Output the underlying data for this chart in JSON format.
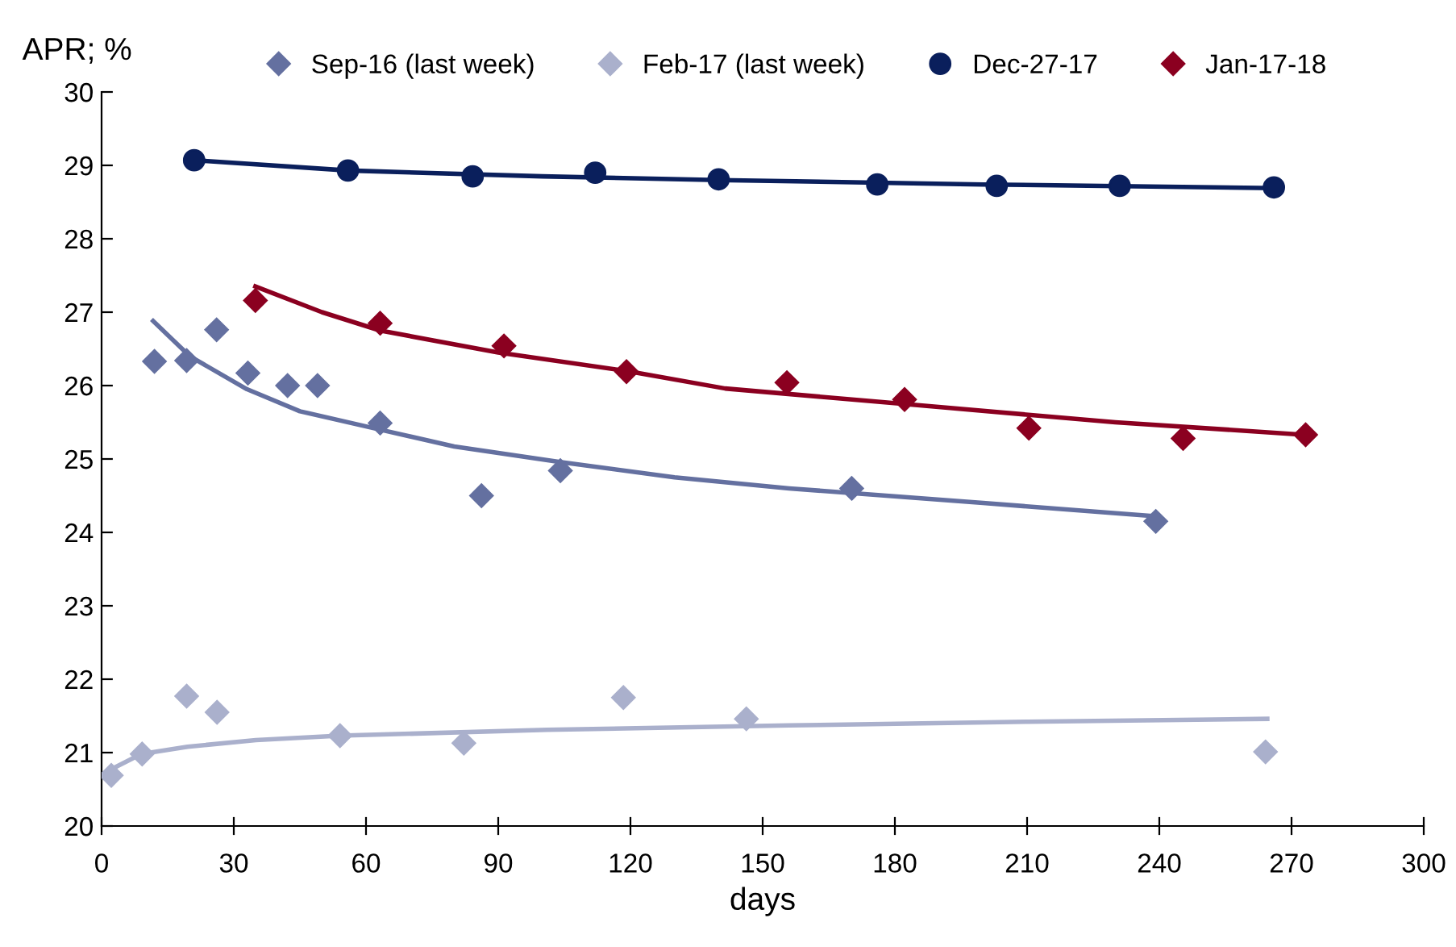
{
  "chart_data": {
    "type": "scatter",
    "ylabel": "APR; %",
    "xlabel": "days",
    "xlim": [
      0,
      300
    ],
    "ylim": [
      20,
      30
    ],
    "xticks": [
      0,
      30,
      60,
      90,
      120,
      150,
      180,
      210,
      240,
      270,
      300
    ],
    "yticks": [
      20,
      21,
      22,
      23,
      24,
      25,
      26,
      27,
      28,
      29,
      30
    ],
    "grid": false,
    "legend": "top",
    "series": [
      {
        "name": "Sep-16 (last week)",
        "marker": "diamond",
        "color": "#6470a0",
        "x": [
          12,
          19.3,
          26.1,
          33.2,
          42.2,
          49,
          63.2,
          86.2,
          104.1,
          170.2,
          239.2
        ],
        "values": [
          26.33,
          26.34,
          26.76,
          26.17,
          26.0,
          26.0,
          25.49,
          24.5,
          24.84,
          24.6,
          24.15
        ]
      },
      {
        "name": "Feb-17 (last week)",
        "marker": "diamond",
        "color": "#aab0cc",
        "x": [
          2.2,
          9.2,
          19.3,
          26.2,
          54.1,
          82.2,
          118.4,
          146.3,
          264.1
        ],
        "values": [
          20.69,
          20.98,
          21.77,
          21.55,
          21.23,
          21.13,
          21.75,
          21.46,
          21.01
        ]
      },
      {
        "name": "Dec-27-17",
        "marker": "circle",
        "color": "#0a1f5c",
        "x": [
          21,
          55.9,
          84.2,
          112,
          140,
          176,
          203.1,
          231,
          266
        ],
        "values": [
          29.07,
          28.93,
          28.85,
          28.9,
          28.81,
          28.74,
          28.72,
          28.72,
          28.7
        ]
      },
      {
        "name": "Jan-17-18",
        "marker": "diamond",
        "color": "#8b0020",
        "x": [
          34.9,
          63.2,
          91.3,
          119.1,
          155.5,
          182.2,
          210.4,
          245.4,
          273.2
        ],
        "values": [
          27.16,
          26.85,
          26.54,
          26.19,
          26.04,
          25.81,
          25.42,
          25.28,
          25.33
        ]
      },
      {
        "type": "line",
        "marker": "none",
        "color": "#6470a0",
        "x": [
          11.7,
          20,
          33,
          45,
          63.2,
          80,
          104,
          130,
          156,
          200,
          239.2
        ],
        "values": [
          26.88,
          26.4,
          25.95,
          25.65,
          25.4,
          25.17,
          24.96,
          24.75,
          24.6,
          24.4,
          24.22
        ]
      },
      {
        "type": "line",
        "marker": "none",
        "color": "#aab0cc",
        "x": [
          1.8,
          9,
          19.5,
          35,
          54,
          101,
          156,
          210,
          264.5
        ],
        "values": [
          20.76,
          20.98,
          21.08,
          21.17,
          21.23,
          21.31,
          21.37,
          21.42,
          21.46
        ]
      },
      {
        "type": "line",
        "marker": "none",
        "color": "#0a1f5c",
        "x": [
          21,
          56,
          100,
          140,
          200,
          266
        ],
        "values": [
          29.07,
          28.93,
          28.85,
          28.8,
          28.74,
          28.69
        ]
      },
      {
        "type": "line",
        "marker": "none",
        "color": "#8b0020",
        "x": [
          34.9,
          50,
          63.2,
          90,
          119,
          141.5,
          182,
          230,
          273
        ],
        "values": [
          27.35,
          27.0,
          26.75,
          26.45,
          26.2,
          25.96,
          25.75,
          25.5,
          25.33
        ]
      }
    ]
  }
}
